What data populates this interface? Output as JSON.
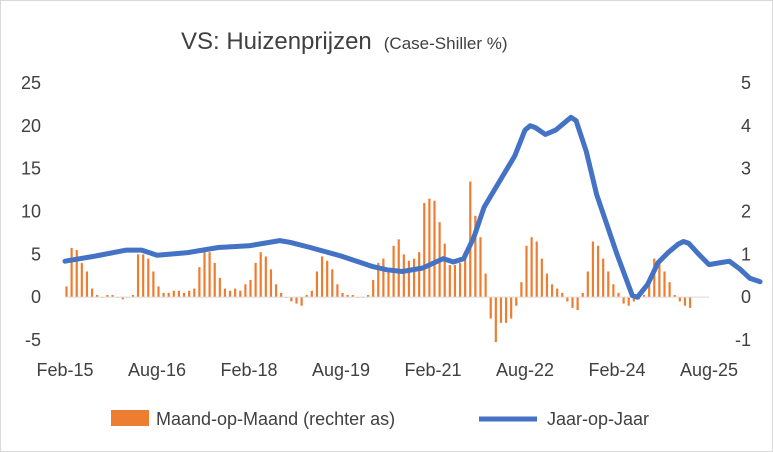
{
  "chart_data": {
    "type": "bar+line",
    "title": "VS: Huizenprijzen",
    "subtitle": "(Case-Shiller %)",
    "left_axis": {
      "ylim": [
        -5,
        25
      ],
      "ticks": [
        "25",
        "20",
        "15",
        "10",
        "5",
        "0",
        "-5"
      ]
    },
    "right_axis": {
      "ylim": [
        -1,
        5
      ],
      "ticks": [
        "5",
        "4",
        "3",
        "2",
        "1",
        "0",
        "-1"
      ]
    },
    "x_ticks": [
      "Feb-15",
      "Aug-16",
      "Feb-18",
      "Aug-19",
      "Feb-21",
      "Aug-22",
      "Feb-24",
      "Aug-25"
    ],
    "x_range_months": [
      0,
      126
    ],
    "colors": {
      "bars": "#ed7d31",
      "line": "#4472c4",
      "zero_axis": "#000000"
    },
    "series": [
      {
        "name": "Maand-op-Maand (rechter as)",
        "type": "bar",
        "axis": "right",
        "values": [
          0.25,
          1.15,
          1.1,
          0.8,
          0.6,
          0.2,
          0.05,
          0.0,
          0.05,
          0.05,
          0.0,
          -0.05,
          0.0,
          0.05,
          1.0,
          1.0,
          0.9,
          0.6,
          0.25,
          0.1,
          0.1,
          0.15,
          0.15,
          0.1,
          0.15,
          0.2,
          0.7,
          1.1,
          1.05,
          0.8,
          0.45,
          0.2,
          0.15,
          0.2,
          0.15,
          0.3,
          0.4,
          0.8,
          1.05,
          0.95,
          0.65,
          0.3,
          0.1,
          0.0,
          -0.1,
          -0.15,
          -0.2,
          0.05,
          0.15,
          0.6,
          0.95,
          0.85,
          0.65,
          0.3,
          0.1,
          0.05,
          0.05,
          0.0,
          0.0,
          0.05,
          0.4,
          0.8,
          0.9,
          0.6,
          1.2,
          1.35,
          1.0,
          0.85,
          0.9,
          1.05,
          2.2,
          2.3,
          2.25,
          1.75,
          1.25,
          0.75,
          0.75,
          0.8,
          0.9,
          2.7,
          1.9,
          1.4,
          0.55,
          -0.5,
          -1.05,
          -0.6,
          -0.6,
          -0.5,
          -0.2,
          0.35,
          1.2,
          1.4,
          1.3,
          0.9,
          0.55,
          0.3,
          0.2,
          0.1,
          -0.1,
          -0.25,
          -0.3,
          0.1,
          0.6,
          1.3,
          1.2,
          0.9,
          0.6,
          0.3,
          0.1,
          -0.15,
          -0.2,
          -0.1,
          -0.05,
          0.05,
          0.45,
          0.9,
          0.8,
          0.6,
          0.35,
          0.05,
          -0.1,
          -0.2,
          -0.25
        ]
      },
      {
        "name": "Jaar-op-Jaar",
        "type": "line",
        "axis": "left",
        "points": [
          [
            0,
            4.2
          ],
          [
            6,
            4.8
          ],
          [
            12,
            5.5
          ],
          [
            15,
            5.5
          ],
          [
            18,
            4.9
          ],
          [
            24,
            5.2
          ],
          [
            30,
            5.8
          ],
          [
            36,
            6.0
          ],
          [
            42,
            6.6
          ],
          [
            44,
            6.4
          ],
          [
            48,
            5.8
          ],
          [
            54,
            4.8
          ],
          [
            60,
            3.6
          ],
          [
            63,
            3.2
          ],
          [
            66,
            3.0
          ],
          [
            70,
            3.4
          ],
          [
            74,
            4.5
          ],
          [
            76,
            4.1
          ],
          [
            78,
            4.5
          ],
          [
            80,
            7.0
          ],
          [
            82,
            10.5
          ],
          [
            86,
            14.5
          ],
          [
            88,
            16.5
          ],
          [
            90,
            19.5
          ],
          [
            91,
            20.0
          ],
          [
            92,
            19.8
          ],
          [
            94,
            19.0
          ],
          [
            96,
            19.5
          ],
          [
            98,
            20.5
          ],
          [
            99,
            21.0
          ],
          [
            100,
            20.6
          ],
          [
            102,
            17.0
          ],
          [
            104,
            12.0
          ],
          [
            106,
            8.5
          ],
          [
            108,
            5.0
          ],
          [
            111,
            0.2
          ],
          [
            112,
            0.0
          ],
          [
            114,
            1.5
          ],
          [
            116,
            4.0
          ],
          [
            118,
            5.2
          ],
          [
            120,
            6.2
          ],
          [
            121,
            6.5
          ],
          [
            122,
            6.3
          ],
          [
            124,
            5.0
          ],
          [
            126,
            3.8
          ],
          [
            128,
            4.0
          ],
          [
            130,
            4.2
          ],
          [
            132,
            3.3
          ],
          [
            134,
            2.2
          ],
          [
            136,
            1.8
          ]
        ]
      }
    ],
    "legend": {
      "position": "bottom",
      "entries": [
        "Maand-op-Maand (rechter as)",
        "Jaar-op-Jaar"
      ]
    }
  }
}
